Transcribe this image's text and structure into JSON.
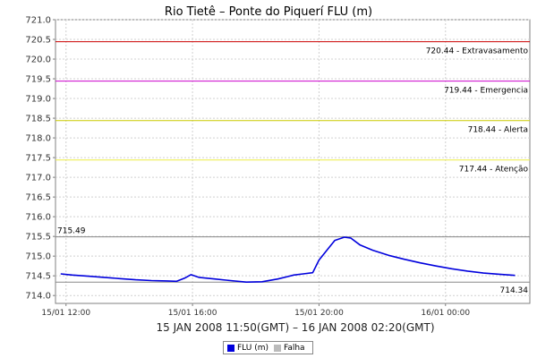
{
  "chart_data": {
    "type": "line",
    "title": "Rio Tietê – Ponte do Piquerí FLU (m)",
    "xlabel": "15 JAN 2008 11:50(GMT) – 16 JAN 2008 02:20(GMT)",
    "ylabel": "",
    "ylim": [
      713.8,
      721.0
    ],
    "yticks": [
      714.0,
      714.5,
      715.0,
      715.5,
      716.0,
      716.5,
      717.0,
      717.5,
      718.0,
      718.5,
      719.0,
      719.5,
      720.0,
      720.5,
      721.0
    ],
    "ytick_labels": [
      "714.0",
      "714.5",
      "715.0",
      "715.5",
      "716.0",
      "716.5",
      "717.0",
      "717.5",
      "718.0",
      "718.5",
      "719.0",
      "719.5",
      "720.0",
      "720.5",
      "721.0"
    ],
    "xlim_hours": [
      11.667,
      26.667
    ],
    "xticks_hours": [
      12,
      16,
      20,
      24
    ],
    "xtick_labels": [
      "15/01 12:00",
      "15/01 16:00",
      "15/01 20:00",
      "16/01 00:00"
    ],
    "grid": true,
    "reference_lines": [
      {
        "value": 720.44,
        "label": "720.44 - Extravasamento",
        "color": "#cc0000"
      },
      {
        "value": 719.44,
        "label": "719.44 - Emergencia",
        "color": "#cc00cc"
      },
      {
        "value": 718.44,
        "label": "718.44 - Alerta",
        "color": "#cccc00"
      },
      {
        "value": 717.44,
        "label": "717.44 - Atenção",
        "color": "#eeee44"
      },
      {
        "value": 715.49,
        "label": "715.49",
        "color": "#888888"
      },
      {
        "value": 714.34,
        "label": "714.34",
        "color": "#888888"
      }
    ],
    "series": [
      {
        "name": "FLU (m)",
        "color": "#0000dd",
        "x_hours": [
          11.83,
          12.2,
          12.7,
          13.2,
          13.7,
          14.2,
          14.7,
          15.2,
          15.5,
          15.75,
          15.95,
          16.2,
          16.7,
          17.2,
          17.7,
          18.2,
          18.7,
          19.0,
          19.2,
          19.5,
          19.8,
          20.0,
          20.3,
          20.5,
          20.8,
          21.0,
          21.3,
          21.7,
          22.2,
          22.7,
          23.2,
          23.7,
          24.2,
          24.7,
          25.2,
          25.7,
          26.2
        ],
        "values": [
          714.55,
          714.52,
          714.49,
          714.46,
          714.43,
          714.4,
          714.38,
          714.37,
          714.36,
          714.44,
          714.53,
          714.46,
          714.42,
          714.38,
          714.34,
          714.35,
          714.42,
          714.48,
          714.52,
          714.55,
          714.58,
          714.9,
          715.2,
          715.4,
          715.48,
          715.46,
          715.28,
          715.15,
          715.02,
          714.92,
          714.83,
          714.75,
          714.68,
          714.62,
          714.57,
          714.54,
          714.51
        ]
      }
    ]
  },
  "legend": {
    "items": [
      {
        "label": "FLU (m)",
        "color": "#0000dd"
      },
      {
        "label": "Falha",
        "color": "#bbbbbb"
      }
    ]
  }
}
